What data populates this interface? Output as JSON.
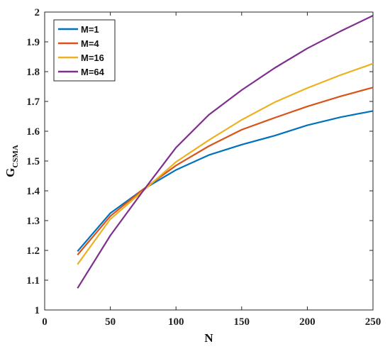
{
  "chart_data": {
    "type": "line",
    "xlabel": "N",
    "ylabel": "G",
    "ylabel_subscript": "CSMA",
    "xlim": [
      0,
      250
    ],
    "ylim": [
      1,
      2
    ],
    "xticks": [
      0,
      50,
      100,
      150,
      200,
      250
    ],
    "yticks": [
      1,
      1.1,
      1.2,
      1.3,
      1.4,
      1.5,
      1.6,
      1.7,
      1.8,
      1.9,
      2
    ],
    "xtick_labels": [
      "0",
      "50",
      "100",
      "150",
      "200",
      "250"
    ],
    "ytick_labels": [
      "1",
      "1.1",
      "1.2",
      "1.3",
      "1.4",
      "1.5",
      "1.6",
      "1.7",
      "1.8",
      "1.9",
      "2"
    ],
    "grid": false,
    "legend_position": "top-left",
    "x": [
      25,
      50,
      75,
      100,
      125,
      150,
      175,
      200,
      225,
      250
    ],
    "series": [
      {
        "name": "M=1",
        "color": "#0072BD",
        "values": [
          1.197,
          1.325,
          1.405,
          1.47,
          1.52,
          1.555,
          1.585,
          1.62,
          1.647,
          1.668
        ]
      },
      {
        "name": "M=4",
        "color": "#D95319",
        "values": [
          1.185,
          1.315,
          1.405,
          1.485,
          1.55,
          1.605,
          1.645,
          1.683,
          1.717,
          1.747
        ]
      },
      {
        "name": "M=16",
        "color": "#EDB120",
        "values": [
          1.153,
          1.305,
          1.4,
          1.497,
          1.57,
          1.638,
          1.697,
          1.745,
          1.788,
          1.827
        ]
      },
      {
        "name": "M=64",
        "color": "#7E2F8E",
        "values": [
          1.073,
          1.25,
          1.4,
          1.545,
          1.655,
          1.738,
          1.812,
          1.878,
          1.935,
          1.988
        ]
      }
    ]
  }
}
